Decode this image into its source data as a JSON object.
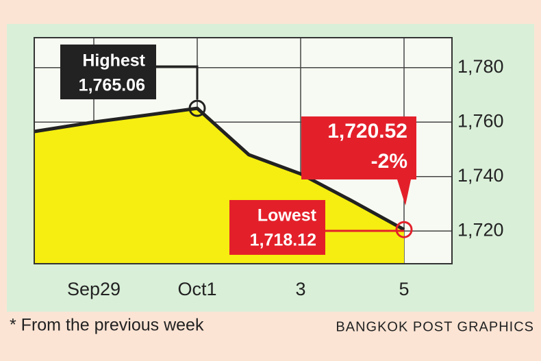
{
  "chart_data": {
    "type": "area",
    "categories": [
      null,
      "Sep29",
      null,
      "Oct1",
      null,
      "3",
      null,
      "5"
    ],
    "values": [
      1757,
      1760,
      1762.5,
      1765.06,
      1748,
      1741,
      1731,
      1720.52
    ],
    "color": "#222222",
    "fill": "#f5ee10",
    "ylim": [
      1708,
      1791
    ],
    "yticks": [
      {
        "value": 1720,
        "label": "1,720"
      },
      {
        "value": 1740,
        "label": "1,740"
      },
      {
        "value": 1760,
        "label": "1,760"
      },
      {
        "value": 1780,
        "label": "1,780"
      }
    ],
    "grid": true,
    "annotations": [
      {
        "title": "Highest",
        "text": "1,765.06"
      },
      {
        "title": "1,720.52",
        "text": "-2%"
      },
      {
        "title": "Lowest",
        "text": "1,718.12"
      }
    ],
    "footnote": "* From the previous week",
    "credit": "BANGKOK POST GRAPHICS"
  }
}
